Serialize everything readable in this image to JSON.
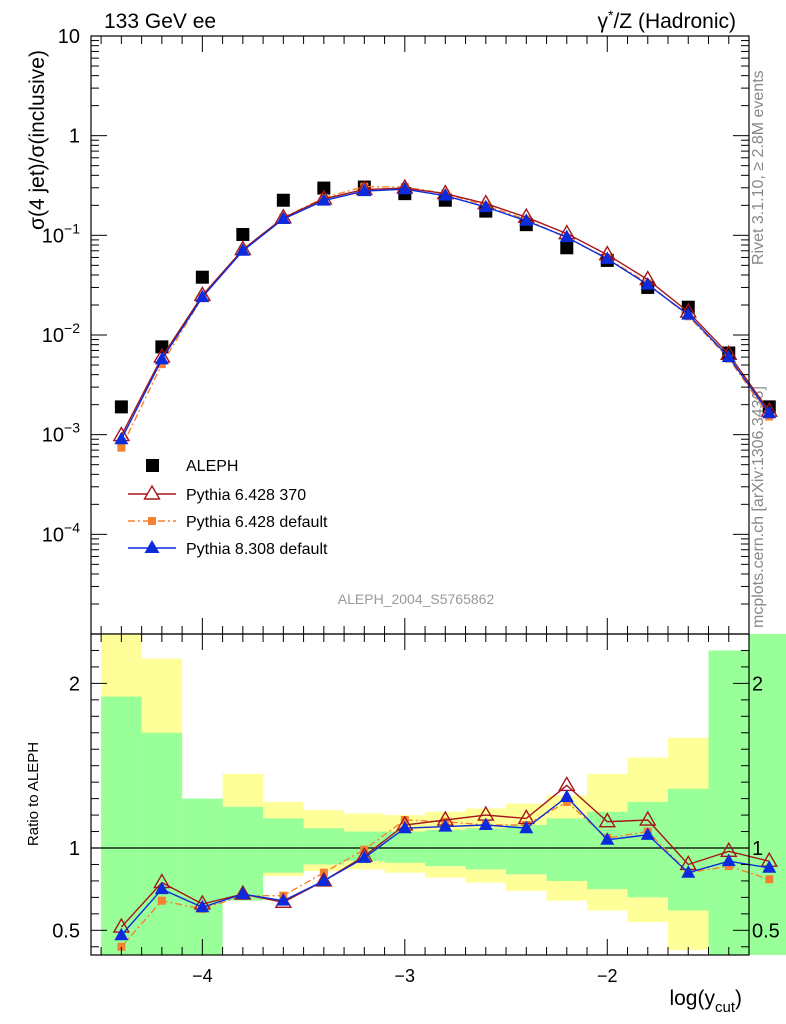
{
  "header": {
    "left_title": "133 GeV ee",
    "right_title_pre": "γ",
    "right_title_sup": "*",
    "right_title_post": "/Z (Hadronic)"
  },
  "side_text": {
    "rivet": "Rivet 3.1.10, ≥ 2.8M events",
    "mcplots": "mcplots.cern.ch [arXiv:1306.3436]"
  },
  "analysis_id": "ALEPH_2004_S5765862",
  "colors": {
    "data": "#000000",
    "p6_370": "#a4161a",
    "p6_default": "#f58231",
    "p8_default": "#0b2bdd",
    "band_inner": "#99ff99",
    "band_outer": "#ffff99"
  },
  "chart_data": [
    {
      "type": "scatter",
      "ylabel": "σ(4 jet)/σ(inclusive)",
      "ylog": true,
      "ylim": [
        1e-05,
        10
      ],
      "xlim": [
        -4.55,
        -1.3
      ],
      "yticks": [
        {
          "value": 10,
          "label": "10"
        },
        {
          "value": 1,
          "label": "1"
        },
        {
          "value": 0.1,
          "base": "10",
          "exp": "−1"
        },
        {
          "value": 0.01,
          "base": "10",
          "exp": "−2"
        },
        {
          "value": 0.001,
          "base": "10",
          "exp": "−3"
        },
        {
          "value": 0.0001,
          "base": "10",
          "exp": "−4"
        }
      ],
      "x": [
        -4.4,
        -4.2,
        -4.0,
        -3.8,
        -3.6,
        -3.4,
        -3.2,
        -3.0,
        -2.8,
        -2.6,
        -2.4,
        -2.2,
        -2.0,
        -1.8,
        -1.6,
        -1.4,
        -1.2
      ],
      "series": [
        {
          "name": "ALEPH",
          "key": "data",
          "marker": "square",
          "values": [
            0.0019,
            0.0076,
            0.038,
            0.102,
            0.225,
            0.298,
            0.305,
            0.262,
            0.225,
            0.175,
            0.128,
            0.075,
            0.056,
            0.03,
            0.019,
            0.0066,
            0.0019
          ]
        },
        {
          "name": "Pythia 6.428 370",
          "key": "p6_370",
          "marker": "triangle-open",
          "line": "solid",
          "values": [
            0.00098,
            0.006,
            0.025,
            0.072,
            0.15,
            0.232,
            0.288,
            0.298,
            0.262,
            0.208,
            0.152,
            0.104,
            0.064,
            0.036,
            0.017,
            0.0064,
            0.00172
          ]
        },
        {
          "name": "Pythia 6.428 default",
          "key": "p6_default",
          "marker": "square-small",
          "line": "dashdot",
          "values": [
            0.00074,
            0.0051,
            0.024,
            0.071,
            0.15,
            0.238,
            0.308,
            0.305,
            0.262,
            0.199,
            0.144,
            0.094,
            0.059,
            0.033,
            0.0154,
            0.0058,
            0.00152
          ]
        },
        {
          "name": "Pythia 8.308 default",
          "key": "p8_default",
          "marker": "triangle",
          "line": "solid",
          "values": [
            0.0009,
            0.0057,
            0.024,
            0.07,
            0.146,
            0.223,
            0.278,
            0.29,
            0.25,
            0.192,
            0.14,
            0.096,
            0.058,
            0.032,
            0.016,
            0.006,
            0.00164
          ]
        }
      ]
    },
    {
      "type": "scatter",
      "xlabel_base": "log(y",
      "xlabel_sub": "cut",
      "xlabel_end": ")",
      "ylabel": "Ratio to ALEPH",
      "ylim": [
        0.35,
        2.3
      ],
      "xlim": [
        -4.55,
        -1.3
      ],
      "reference_line": 1,
      "xticks": [
        {
          "value": -4,
          "label": "−4"
        },
        {
          "value": -3,
          "label": "−3"
        },
        {
          "value": -2,
          "label": "−2"
        }
      ],
      "yticks": [
        {
          "value": 2,
          "label": "2"
        },
        {
          "value": 1,
          "label": "1"
        },
        {
          "value": 0.5,
          "label": "0.5"
        }
      ],
      "x": [
        -4.4,
        -4.2,
        -4.0,
        -3.8,
        -3.6,
        -3.4,
        -3.2,
        -3.0,
        -2.8,
        -2.6,
        -2.4,
        -2.2,
        -2.0,
        -1.8,
        -1.6,
        -1.4,
        -1.2
      ],
      "bin_edges": [
        -4.5,
        -4.3,
        -4.1,
        -3.9,
        -3.7,
        -3.5,
        -3.3,
        -3.1,
        -2.9,
        -2.7,
        -2.5,
        -2.3,
        -2.1,
        -1.9,
        -1.7,
        -1.5,
        -1.3,
        -1.1
      ],
      "band_outer": [
        [
          0.35,
          2.3
        ],
        [
          0.35,
          2.15
        ],
        [
          0.35,
          0.72
        ],
        [
          0.72,
          1.45
        ],
        [
          0.83,
          1.28
        ],
        [
          0.86,
          1.23
        ],
        [
          0.87,
          1.21
        ],
        [
          0.85,
          1.2
        ],
        [
          0.82,
          1.22
        ],
        [
          0.79,
          1.24
        ],
        [
          0.74,
          1.27
        ],
        [
          0.68,
          1.32
        ],
        [
          0.62,
          1.45
        ],
        [
          0.55,
          1.55
        ],
        [
          0.38,
          1.67
        ],
        [
          0.35,
          1.8
        ],
        [
          0.35,
          2.3
        ]
      ],
      "band_inner": [
        [
          0.35,
          1.92
        ],
        [
          0.35,
          1.7
        ],
        [
          0.35,
          1.3
        ],
        [
          0.68,
          1.25
        ],
        [
          0.85,
          1.18
        ],
        [
          0.9,
          1.12
        ],
        [
          0.92,
          1.1
        ],
        [
          0.91,
          1.1
        ],
        [
          0.89,
          1.11
        ],
        [
          0.87,
          1.12
        ],
        [
          0.84,
          1.14
        ],
        [
          0.8,
          1.18
        ],
        [
          0.75,
          1.22
        ],
        [
          0.7,
          1.28
        ],
        [
          0.62,
          1.36
        ],
        [
          0.35,
          2.2
        ],
        [
          0.35,
          2.3
        ]
      ],
      "series": [
        {
          "name": "Pythia 6.428 370",
          "key": "p6_370",
          "marker": "triangle-open",
          "line": "solid",
          "values": [
            0.52,
            0.79,
            0.66,
            0.72,
            0.67,
            0.8,
            0.95,
            1.14,
            1.17,
            1.2,
            1.18,
            1.38,
            1.16,
            1.17,
            0.9,
            0.98,
            0.92
          ]
        },
        {
          "name": "Pythia 6.428 default",
          "key": "p6_default",
          "marker": "square-small",
          "line": "dashdot",
          "values": [
            0.4,
            0.68,
            0.63,
            0.71,
            0.71,
            0.85,
            0.99,
            1.17,
            1.16,
            1.14,
            1.14,
            1.28,
            1.06,
            1.1,
            0.85,
            0.89,
            0.81
          ]
        },
        {
          "name": "Pythia 8.308 default",
          "key": "p8_default",
          "marker": "triangle",
          "line": "solid",
          "values": [
            0.47,
            0.75,
            0.64,
            0.72,
            0.68,
            0.8,
            0.94,
            1.12,
            1.13,
            1.14,
            1.12,
            1.31,
            1.05,
            1.08,
            0.85,
            0.92,
            0.88
          ]
        }
      ]
    }
  ]
}
